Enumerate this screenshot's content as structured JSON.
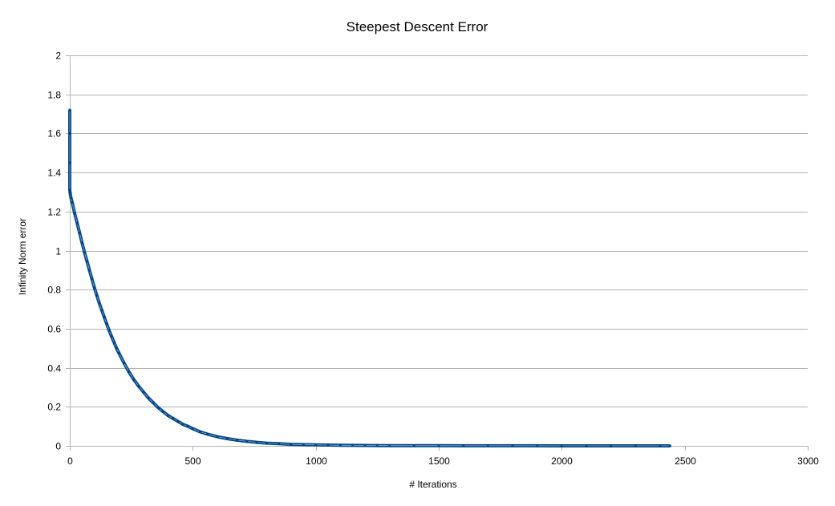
{
  "chart_data": {
    "type": "scatter",
    "title": "Steepest Descent Error",
    "xlabel": "# Iterations",
    "ylabel": "Infinity Norm error",
    "xlim": [
      0,
      3000
    ],
    "ylim": [
      0,
      2
    ],
    "x_ticks": [
      "0",
      "500",
      "1000",
      "1500",
      "2000",
      "2500",
      "3000"
    ],
    "y_ticks": [
      "0",
      "0.2",
      "0.4",
      "0.6",
      "0.8",
      "1",
      "1.2",
      "1.4",
      "1.6",
      "1.8",
      "2"
    ],
    "grid": "horizontal",
    "legend": "none",
    "colors": {
      "series": "#004586",
      "grid": "#b3b3b3",
      "axis": "#b3b3b3"
    },
    "series": [
      {
        "x": [
          0,
          0,
          0,
          0,
          1,
          2,
          5,
          10,
          20,
          30,
          40,
          50,
          60,
          70,
          80,
          90,
          100,
          110,
          120,
          130,
          140,
          150,
          160,
          170,
          180,
          190,
          200,
          220,
          240,
          260,
          280,
          300,
          320,
          340,
          360,
          380,
          400,
          420,
          440,
          460,
          480,
          500,
          530,
          560,
          600,
          640,
          680,
          720,
          760,
          800,
          850,
          900,
          950,
          1000,
          1050,
          1100,
          1150,
          1200,
          1250,
          1300,
          1400,
          1500,
          1600,
          1700,
          1800,
          1900,
          2000,
          2100,
          2200,
          2300,
          2400,
          2440
        ],
        "y": [
          1.72,
          1.6,
          1.45,
          1.31,
          1.3,
          1.29,
          1.27,
          1.245,
          1.19,
          1.14,
          1.09,
          1.04,
          0.99,
          0.945,
          0.9,
          0.855,
          0.81,
          0.77,
          0.73,
          0.695,
          0.66,
          0.625,
          0.59,
          0.56,
          0.53,
          0.5,
          0.475,
          0.425,
          0.38,
          0.34,
          0.305,
          0.275,
          0.245,
          0.22,
          0.195,
          0.175,
          0.155,
          0.14,
          0.125,
          0.11,
          0.1,
          0.088,
          0.072,
          0.06,
          0.047,
          0.037,
          0.029,
          0.023,
          0.018,
          0.014,
          0.011,
          0.008,
          0.006,
          0.005,
          0.004,
          0.003,
          0.0025,
          0.002,
          0.0015,
          0.0012,
          0.0009,
          0.0007,
          0.0005,
          0.0004,
          0.0003,
          0.0003,
          0.0002,
          0.0002,
          0.0001,
          0.0001,
          0.0001,
          0.0001
        ]
      }
    ]
  }
}
